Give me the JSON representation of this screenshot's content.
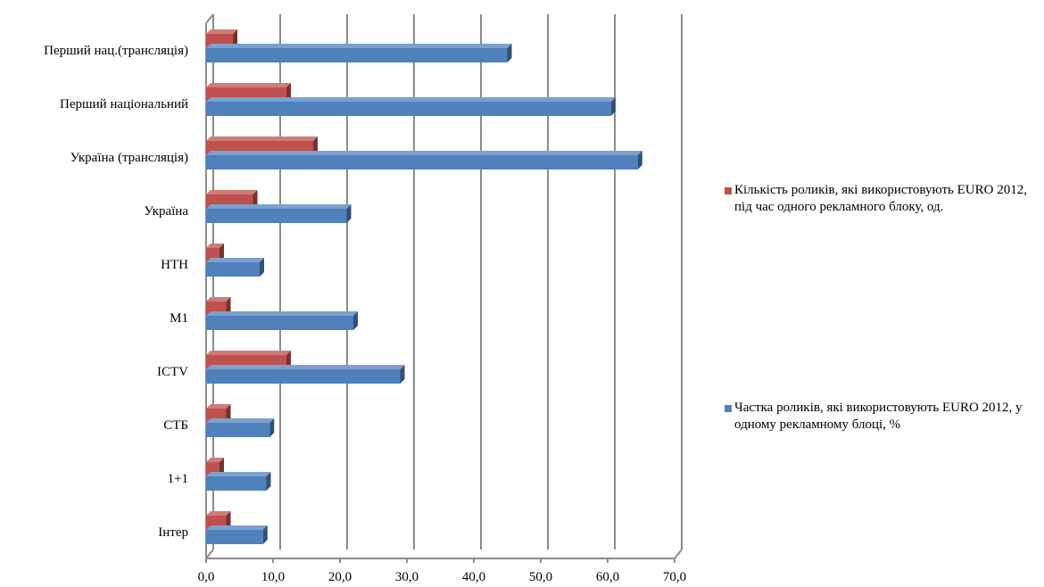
{
  "chart_data": {
    "type": "bar",
    "orientation": "horizontal",
    "style": "3d",
    "categories": [
      "Перший нац.(трансляція)",
      "Перший національний",
      "Україна (трансляція)",
      "Україна",
      "НТН",
      "М1",
      "ICTV",
      "СТБ",
      "1+1",
      "Інтер"
    ],
    "series": [
      {
        "name": "Кількість роликів, які використовують EURO 2012, під час одного рекламного блоку, од.",
        "color": "#c0504d",
        "values": [
          4.0,
          12.0,
          16.0,
          7.0,
          2.0,
          3.0,
          12.0,
          3.0,
          2.0,
          3.0
        ]
      },
      {
        "name": "Частка роликів, які використовують EURO 2012, у одному рекламному блоці, %",
        "color": "#4f81bd",
        "values": [
          45.0,
          60.5,
          64.5,
          21.0,
          8.0,
          22.0,
          29.0,
          9.5,
          9.0,
          8.5
        ]
      }
    ],
    "xlim": [
      0,
      70
    ],
    "xticks": [
      "0,0",
      "10,0",
      "20,0",
      "30,0",
      "40,0",
      "50,0",
      "60,0",
      "70,0"
    ],
    "grid": true,
    "legend_position": "right"
  }
}
